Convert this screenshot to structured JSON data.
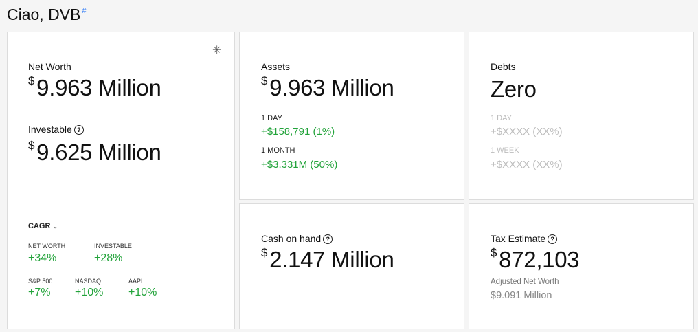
{
  "greeting": {
    "text": "Ciao, DVB",
    "hash": "#"
  },
  "net_worth_card": {
    "settings_glyph": "✳",
    "net_worth_label": "Net Worth",
    "net_worth_currency": "$",
    "net_worth_value": "9.963 Million",
    "investable_label": "Investable",
    "investable_currency": "$",
    "investable_value": "9.625 Million",
    "cagr": {
      "label": "CAGR",
      "metrics": [
        {
          "label": "NET WORTH",
          "value": "+34%"
        },
        {
          "label": "INVESTABLE",
          "value": "+28%"
        }
      ],
      "benchmarks": [
        {
          "label": "S&P 500",
          "value": "+7%"
        },
        {
          "label": "NASDAQ",
          "value": "+10%"
        },
        {
          "label": "AAPL",
          "value": "+10%"
        }
      ]
    }
  },
  "assets_card": {
    "label": "Assets",
    "currency": "$",
    "value": "9.963 Million",
    "periods": [
      {
        "label": "1 DAY",
        "change": "+$158,791 (1%)"
      },
      {
        "label": "1 MONTH",
        "change": "+$3.331M (50%)"
      }
    ]
  },
  "debts_card": {
    "label": "Debts",
    "value": "Zero",
    "periods": [
      {
        "label": "1 DAY",
        "change": "+$XXXX (XX%)"
      },
      {
        "label": "1 WEEK",
        "change": "+$XXXX (XX%)"
      }
    ]
  },
  "cash_card": {
    "label": "Cash on hand",
    "currency": "$",
    "value": "2.147 Million"
  },
  "tax_card": {
    "label": "Tax Estimate",
    "currency": "$",
    "value": "872,103",
    "sub_label": "Adjusted Net Worth",
    "sub_value": "$9.091 Million"
  },
  "colors": {
    "accent_green": "#22a33a",
    "muted": "#bdbdbd",
    "link_blue": "#3b82f6"
  },
  "icons": {
    "help": "question-circle-icon",
    "settings": "asterisk-icon",
    "chevron": "chevron-down-icon"
  }
}
